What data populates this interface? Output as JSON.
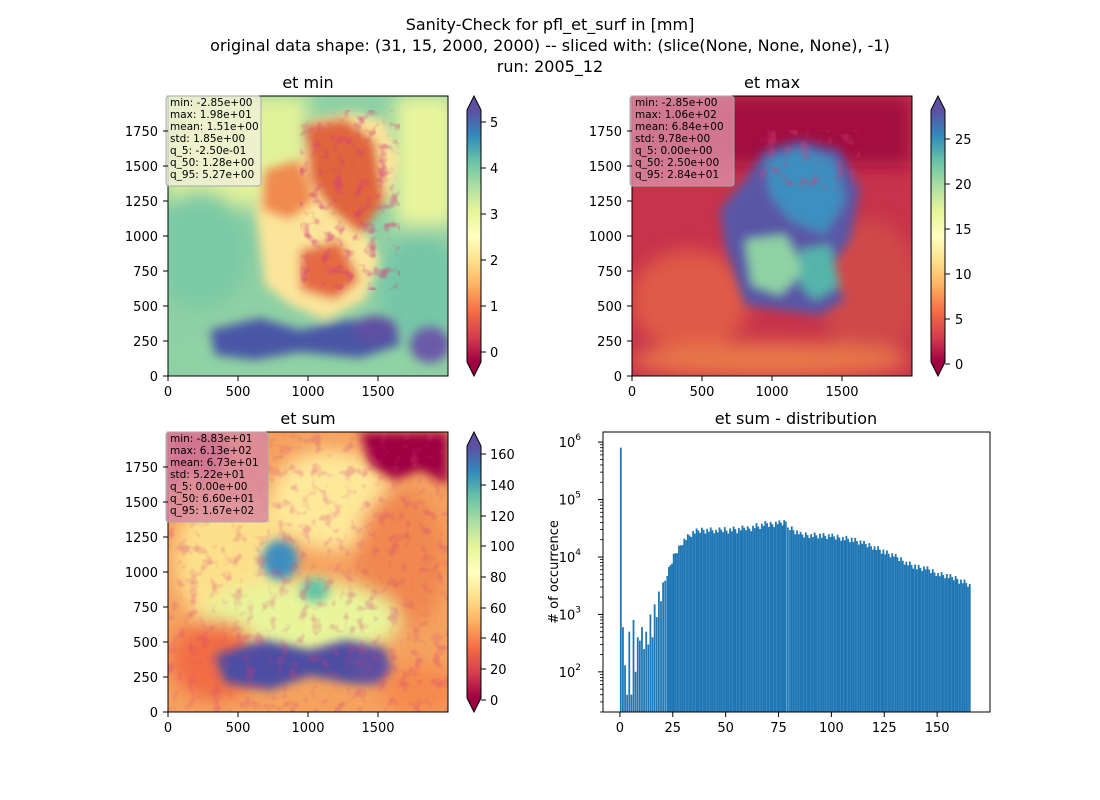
{
  "figure": {
    "title_lines": [
      "Sanity-Check for pfl_et_surf in [mm]",
      "original data shape: (31, 15, 2000, 2000) -- sliced with: (slice(None, None, None), -1)",
      "run: 2005_12"
    ]
  },
  "colors": {
    "spectral": [
      "#9e0142",
      "#d53e4f",
      "#f46d43",
      "#fdae61",
      "#fee08b",
      "#ffffbf",
      "#e6f598",
      "#abdda4",
      "#66c2a5",
      "#3288bd",
      "#5e4fa2"
    ],
    "hist_bar": "#1f77b4",
    "stats_box_light": "#f0f0d8",
    "stats_box_pink": "#d98aa0"
  },
  "chart_data": [
    {
      "type": "heatmap",
      "title": "et min",
      "colormap": "Spectral",
      "xlim": [
        0,
        2000
      ],
      "ylim": [
        0,
        2000
      ],
      "xticks": [
        "0",
        "500",
        "1000",
        "1500"
      ],
      "yticks": [
        "0",
        "250",
        "500",
        "750",
        "1000",
        "1250",
        "1500",
        "1750"
      ],
      "colorbar": {
        "range": [
          -0.4,
          5.4
        ],
        "ticks": [
          "0",
          "1",
          "2",
          "3",
          "4",
          "5"
        ],
        "extend": "both"
      },
      "stats": [
        "min: -2.85e+00",
        "max: 1.98e+01",
        "mean: 1.51e+00",
        "std: 1.85e+00",
        "q_5: -2.50e-01",
        "q_50: 1.28e+00",
        "q_95: 5.27e+00"
      ]
    },
    {
      "type": "heatmap",
      "title": "et max",
      "colormap": "Spectral",
      "xlim": [
        0,
        2000
      ],
      "ylim": [
        0,
        2000
      ],
      "xticks": [
        "0",
        "500",
        "1000",
        "1500"
      ],
      "yticks": [
        "0",
        "250",
        "500",
        "750",
        "1000",
        "1250",
        "1500",
        "1750"
      ],
      "colorbar": {
        "range": [
          -0.5,
          28.6
        ],
        "ticks": [
          "0",
          "5",
          "10",
          "15",
          "20",
          "25"
        ],
        "extend": "both"
      },
      "stats": [
        "min: -2.85e+00",
        "max: 1.06e+02",
        "mean: 6.84e+00",
        "std: 9.78e+00",
        "q_5: 0.00e+00",
        "q_50: 2.50e+00",
        "q_95: 2.84e+01"
      ]
    },
    {
      "type": "heatmap",
      "title": "et sum",
      "colormap": "Spectral",
      "xlim": [
        0,
        2000
      ],
      "ylim": [
        0,
        2000
      ],
      "xticks": [
        "0",
        "500",
        "1000",
        "1500"
      ],
      "yticks": [
        "0",
        "250",
        "500",
        "750",
        "1000",
        "1250",
        "1500",
        "1750"
      ],
      "colorbar": {
        "range": [
          -3,
          171
        ],
        "ticks": [
          "0",
          "20",
          "40",
          "60",
          "80",
          "100",
          "120",
          "140",
          "160"
        ],
        "extend": "both"
      },
      "stats": [
        "min: -8.83e+01",
        "max: 6.13e+02",
        "mean: 6.73e+01",
        "std: 5.22e+01",
        "q_5: 0.00e+00",
        "q_50: 6.60e+01",
        "q_95: 1.67e+02"
      ]
    },
    {
      "type": "bar",
      "title": "et sum - distribution",
      "ylabel": "# of occurrence",
      "yscale": "log",
      "xlim": [
        -8,
        175
      ],
      "ylim": [
        20,
        1500000
      ],
      "xticks": [
        0,
        25,
        50,
        75,
        100,
        125,
        150
      ],
      "yticks": [
        {
          "v": 100,
          "label": "10",
          "sup": "2"
        },
        {
          "v": 1000,
          "label": "10",
          "sup": "3"
        },
        {
          "v": 10000,
          "label": "10",
          "sup": "4"
        },
        {
          "v": 100000,
          "label": "10",
          "sup": "5"
        },
        {
          "v": 1000000,
          "label": "10",
          "sup": "6"
        }
      ],
      "bin_width": 0.85,
      "x": [
        0,
        1,
        2,
        3,
        4,
        5,
        6,
        7,
        8,
        9,
        10,
        11,
        12,
        13,
        14,
        15,
        16,
        17,
        18,
        19,
        20,
        22,
        25,
        30,
        35,
        40,
        45,
        50,
        55,
        60,
        65,
        70,
        75,
        78,
        80,
        85,
        90,
        95,
        100,
        105,
        110,
        115,
        120,
        125,
        130,
        135,
        140,
        145,
        150,
        155,
        160,
        165
      ],
      "values": [
        800000,
        600,
        130,
        40,
        500,
        40,
        800,
        100,
        400,
        350,
        600,
        250,
        500,
        300,
        1000,
        400,
        1500,
        900,
        2500,
        1700,
        3500,
        5000,
        10000,
        20000,
        27000,
        30000,
        28000,
        30000,
        30000,
        32000,
        35000,
        38000,
        40000,
        42000,
        33000,
        25000,
        25000,
        24000,
        23000,
        22000,
        20000,
        17000,
        15000,
        12000,
        10000,
        8000,
        6500,
        6000,
        5000,
        4500,
        4000,
        3200
      ]
    }
  ]
}
